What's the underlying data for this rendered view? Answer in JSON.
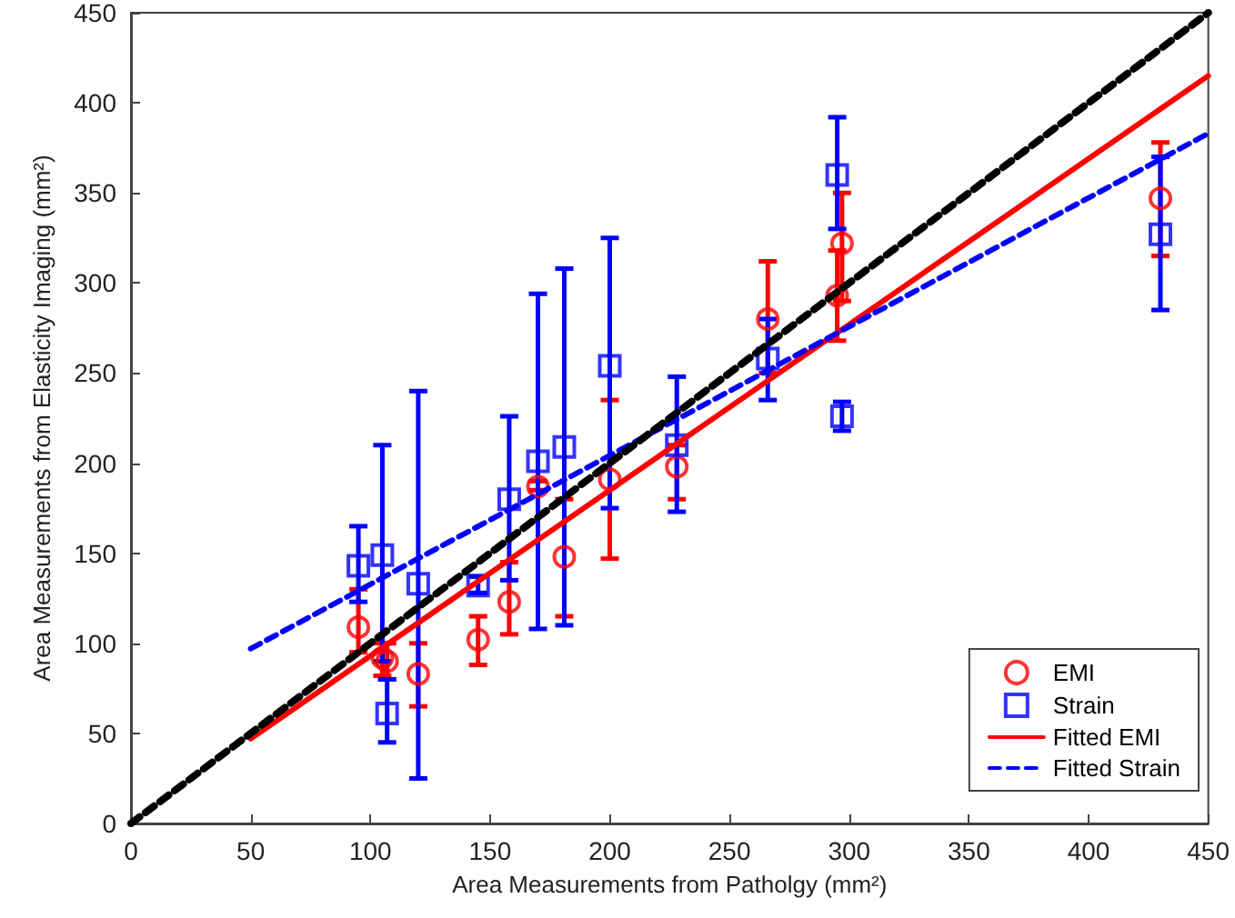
{
  "chart_data": {
    "type": "scatter",
    "xlabel": "Area Measurements from Patholgy (mm²)",
    "ylabel": "Area Measurements from Elasticity Imaging (mm²)",
    "xlim": [
      0,
      450
    ],
    "xticks": [
      0,
      50,
      100,
      150,
      200,
      250,
      300,
      350,
      400,
      450
    ],
    "ylim": [
      0,
      450
    ],
    "yticks": [
      0,
      50,
      100,
      150,
      200,
      250,
      300,
      350,
      400,
      450
    ],
    "grid": false,
    "legend": "bottom right",
    "series": [
      {
        "name": "EMI",
        "marker": "circle",
        "color": "#ff0000",
        "x": [
          95,
          105,
          107,
          120,
          145,
          158,
          170,
          181,
          200,
          228,
          266,
          295,
          297,
          430
        ],
        "values": [
          109,
          92,
          90,
          83,
          102,
          123,
          187,
          148,
          191,
          198,
          280,
          293,
          322,
          347
        ],
        "errors": [
          [
            95,
            130
          ],
          [
            82,
            100
          ],
          [
            80,
            100
          ],
          [
            65,
            100
          ],
          [
            88,
            115
          ],
          [
            105,
            145
          ],
          [
            185,
            190
          ],
          [
            115,
            180
          ],
          [
            147,
            235
          ],
          [
            180,
            210
          ],
          [
            250,
            312
          ],
          [
            268,
            318
          ],
          [
            290,
            350
          ],
          [
            315,
            378
          ]
        ]
      },
      {
        "name": "Strain",
        "marker": "square",
        "color": "#0000ff",
        "x": [
          95,
          105,
          107,
          120,
          145,
          158,
          170,
          181,
          200,
          228,
          266,
          295,
          297,
          430
        ],
        "values": [
          143,
          149,
          61,
          133,
          132,
          180,
          201,
          209,
          254,
          210,
          258,
          360,
          226,
          327
        ],
        "errors": [
          [
            123,
            165
          ],
          [
            90,
            210
          ],
          [
            45,
            80
          ],
          [
            25,
            240
          ],
          [
            128,
            137
          ],
          [
            135,
            226
          ],
          [
            108,
            294
          ],
          [
            110,
            308
          ],
          [
            175,
            325
          ],
          [
            173,
            248
          ],
          [
            235,
            280
          ],
          [
            330,
            392
          ],
          [
            218,
            234
          ],
          [
            285,
            370
          ]
        ]
      },
      {
        "name": "Fitted EMI",
        "type": "line",
        "marker": "none",
        "line_style": "solid",
        "color": "#ff0000",
        "x": [
          50,
          450
        ],
        "values": [
          47,
          415
        ]
      },
      {
        "name": "Fitted Strain",
        "type": "line",
        "marker": "none",
        "line_style": "dashed",
        "color": "#0000ff",
        "x": [
          50,
          450
        ],
        "values": [
          97,
          383
        ]
      },
      {
        "type": "line",
        "marker": "none",
        "line_style": "dashed",
        "color": "#000000",
        "x": [
          0,
          450
        ],
        "values": [
          0,
          450
        ]
      }
    ]
  }
}
